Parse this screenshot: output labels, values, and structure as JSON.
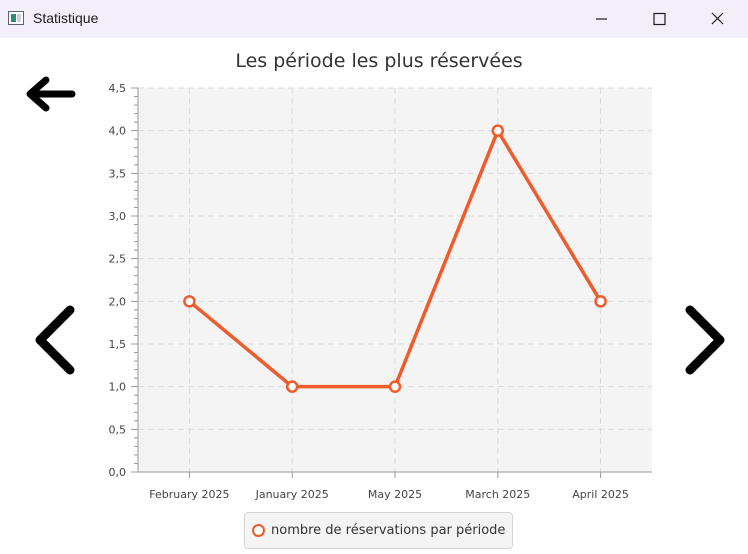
{
  "window": {
    "title": "Statistique",
    "icon": "app-window-icon",
    "controls": [
      "minimize-icon",
      "maximize-icon",
      "close-icon"
    ]
  },
  "navigation": {
    "back_icon": "arrow-left-icon",
    "previous_icon": "chevron-left-icon",
    "next_icon": "chevron-right-icon"
  },
  "chart_data": {
    "type": "line",
    "title": "Les période les plus réservées",
    "categories": [
      "February 2025",
      "January 2025",
      "May 2025",
      "March 2025",
      "April 2025"
    ],
    "series": [
      {
        "name": "nombre de réservations par période",
        "values": [
          2,
          1,
          1,
          4,
          2
        ],
        "color": "#ef5b2a"
      }
    ],
    "ylim": [
      0,
      4.5
    ],
    "y_ticks": [
      "0,0",
      "0,5",
      "1,0",
      "1,5",
      "2,0",
      "2,5",
      "3,0",
      "3,5",
      "4,0",
      "4,5"
    ],
    "grid": true,
    "legend": "bottom"
  }
}
